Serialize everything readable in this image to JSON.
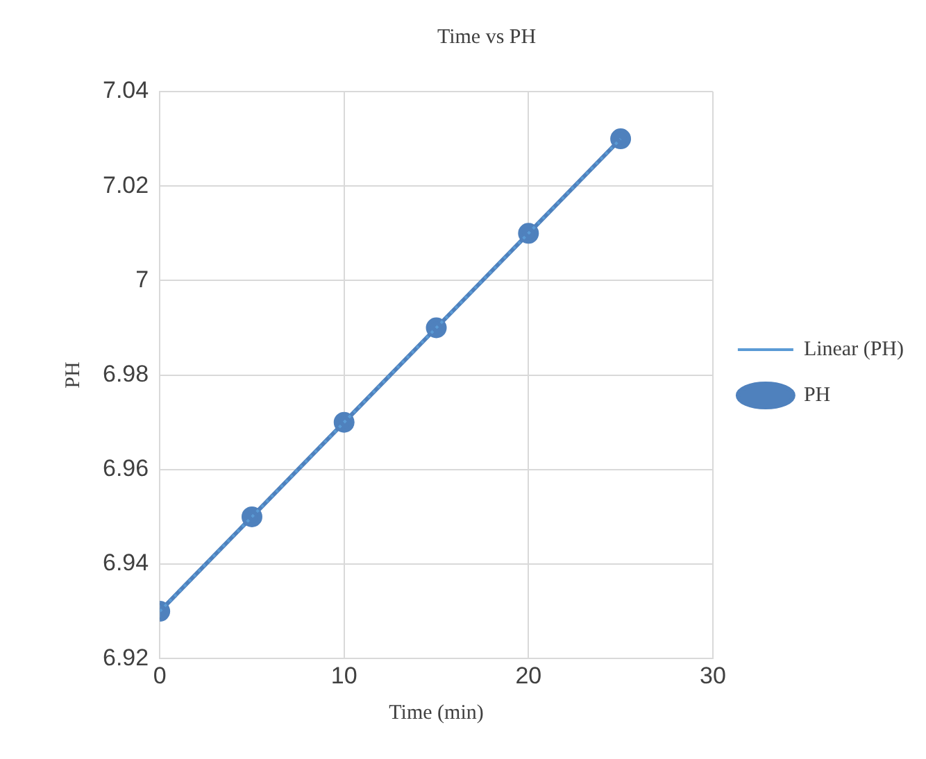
{
  "chart_data": {
    "type": "line",
    "title": "Time vs PH",
    "xlabel": "Time (min)",
    "ylabel": "PH",
    "xlim": [
      0,
      30
    ],
    "xticks": [
      0,
      10,
      20,
      30
    ],
    "ylim": [
      6.92,
      7.04
    ],
    "yticks": [
      6.92,
      6.94,
      6.96,
      6.98,
      7,
      7.02,
      7.04
    ],
    "grid": true,
    "legend": "right",
    "marker": "circle",
    "line_style": "solid",
    "series": [
      {
        "name": "PH",
        "color": "#4f81bd",
        "x": [
          0,
          5,
          10,
          15,
          20,
          25
        ],
        "values": [
          6.93,
          6.95,
          6.97,
          6.99,
          7.01,
          7.03
        ]
      },
      {
        "name": "Linear (PH)",
        "type": "line",
        "line_style": "dotted",
        "marker": "none",
        "color": "#5b9bd5",
        "x": [
          0,
          25
        ],
        "values": [
          6.93,
          7.03
        ]
      }
    ]
  }
}
